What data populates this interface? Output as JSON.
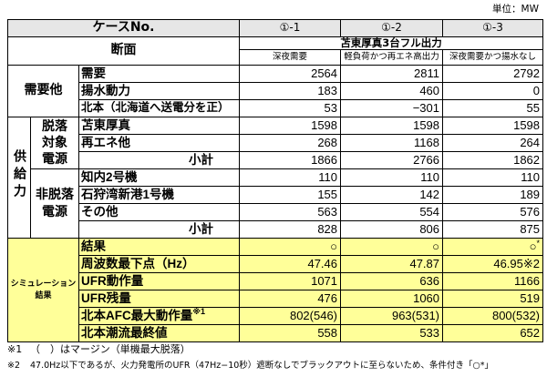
{
  "unit": "単位：MW",
  "colors": {
    "simulation_bg": "#ffff99",
    "header_bg": "#e6e6e6",
    "line": "#000000"
  },
  "header": {
    "case_no_label": "ケースNo.",
    "cases": [
      "①-1",
      "①-2",
      "①-3"
    ],
    "section_label": "断面",
    "condition": "苫東厚真3台フル出力",
    "sub_conditions": [
      "深夜需要",
      "軽負荷かつ再エネ高出力",
      "深夜需要かつ揚水なし"
    ]
  },
  "demand_group": {
    "label": "需要他",
    "rows": [
      {
        "label": "需要",
        "values": [
          "2564",
          "2811",
          "2792"
        ]
      },
      {
        "label": "揚水動力",
        "values": [
          "183",
          "460",
          "0"
        ]
      },
      {
        "label": "北本（北海道へ送電分を正）",
        "values": [
          "53",
          "−301",
          "55"
        ]
      }
    ]
  },
  "supply_group": {
    "label": "供給力",
    "tripped": {
      "label_lines": [
        "脱落",
        "対象",
        "電源"
      ],
      "rows": [
        {
          "label": "苫東厚真",
          "values": [
            "1598",
            "1598",
            "1598"
          ]
        },
        {
          "label": "再エネ他",
          "values": [
            "268",
            "1168",
            "264"
          ]
        },
        {
          "label": "小計",
          "values": [
            "1866",
            "2766",
            "1862"
          ]
        }
      ]
    },
    "non_tripped": {
      "label_lines": [
        "非脱落",
        "電源"
      ],
      "rows": [
        {
          "label": "知内2号機",
          "values": [
            "110",
            "110",
            "110"
          ]
        },
        {
          "label": "石狩湾新港1号機",
          "values": [
            "155",
            "142",
            "189"
          ]
        },
        {
          "label": "その他",
          "values": [
            "563",
            "554",
            "576"
          ]
        },
        {
          "label": "小計",
          "values": [
            "828",
            "806",
            "875"
          ]
        }
      ]
    }
  },
  "simulation": {
    "label_lines": [
      "シミュレーション",
      "結果"
    ],
    "rows": [
      {
        "label": "結果",
        "values": [
          "○",
          "○",
          "○"
        ],
        "notes": {
          "2": "*"
        }
      },
      {
        "label": "周波数最下点（Hz）",
        "values": [
          "47.46",
          "47.87",
          "46.95"
        ],
        "notes": {
          "2": "※2"
        }
      },
      {
        "label": "UFR動作量",
        "values": [
          "1071",
          "636",
          "1166"
        ]
      },
      {
        "label": "UFR残量",
        "values": [
          "476",
          "1060",
          "519"
        ]
      },
      {
        "label": "北本AFC最大動作量",
        "label_note": "※1",
        "values": [
          "802(546)",
          "963(531)",
          "800(532)"
        ]
      },
      {
        "label": "北本潮流最終値",
        "values": [
          "558",
          "533",
          "652"
        ]
      }
    ]
  },
  "footnotes": [
    {
      "mark": "※1",
      "text": "（　）はマージン（単機最大脱落）"
    },
    {
      "mark": "※2",
      "text": "47.0Hz以下であるが、火力発電所のUFR（47Hz−10秒）遮断なしでブラックアウトに至らないため、条件付き「○*」"
    }
  ]
}
